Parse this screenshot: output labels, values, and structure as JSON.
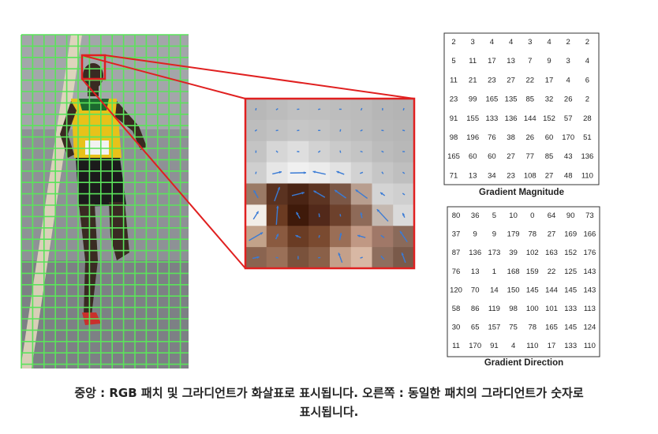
{
  "magnitude": {
    "title": "Gradient Magnitude",
    "rows": [
      [
        "2",
        "3",
        "4",
        "4",
        "3",
        "4",
        "2",
        "2"
      ],
      [
        "5",
        "11",
        "17",
        "13",
        "7",
        "9",
        "3",
        "4"
      ],
      [
        "11",
        "21",
        "23",
        "27",
        "22",
        "17",
        "4",
        "6"
      ],
      [
        "23",
        "99",
        "165",
        "135",
        "85",
        "32",
        "26",
        "2"
      ],
      [
        "91",
        "155",
        "133",
        "136",
        "144",
        "152",
        "57",
        "28"
      ],
      [
        "98",
        "196",
        "76",
        "38",
        "26",
        "60",
        "170",
        "51"
      ],
      [
        "165",
        "60",
        "60",
        "27",
        "77",
        "85",
        "43",
        "136"
      ],
      [
        "71",
        "13",
        "34",
        "23",
        "108",
        "27",
        "48",
        "110"
      ]
    ]
  },
  "direction": {
    "title": "Gradient Direction",
    "rows": [
      [
        "80",
        "36",
        "5",
        "10",
        "0",
        "64",
        "90",
        "73"
      ],
      [
        "37",
        "9",
        "9",
        "179",
        "78",
        "27",
        "169",
        "166"
      ],
      [
        "87",
        "136",
        "173",
        "39",
        "102",
        "163",
        "152",
        "176"
      ],
      [
        "76",
        "13",
        "1",
        "168",
        "159",
        "22",
        "125",
        "143"
      ],
      [
        "120",
        "70",
        "14",
        "150",
        "145",
        "144",
        "145",
        "143"
      ],
      [
        "58",
        "86",
        "119",
        "98",
        "100",
        "101",
        "133",
        "113"
      ],
      [
        "30",
        "65",
        "157",
        "75",
        "78",
        "165",
        "145",
        "124"
      ],
      [
        "11",
        "170",
        "91",
        "4",
        "110",
        "17",
        "133",
        "110"
      ]
    ]
  },
  "caption": {
    "line1": "중앙 : RGB 패치 및 그라디언트가 화살표로 표시됩니다. 오른쪽 : 동일한 패치의 그라디언트가 숫자로",
    "line2": "표시됩니다."
  },
  "colors": {
    "grid": "#5be35b",
    "highlight": "#e02020",
    "arrow": "#3a7bd5"
  }
}
